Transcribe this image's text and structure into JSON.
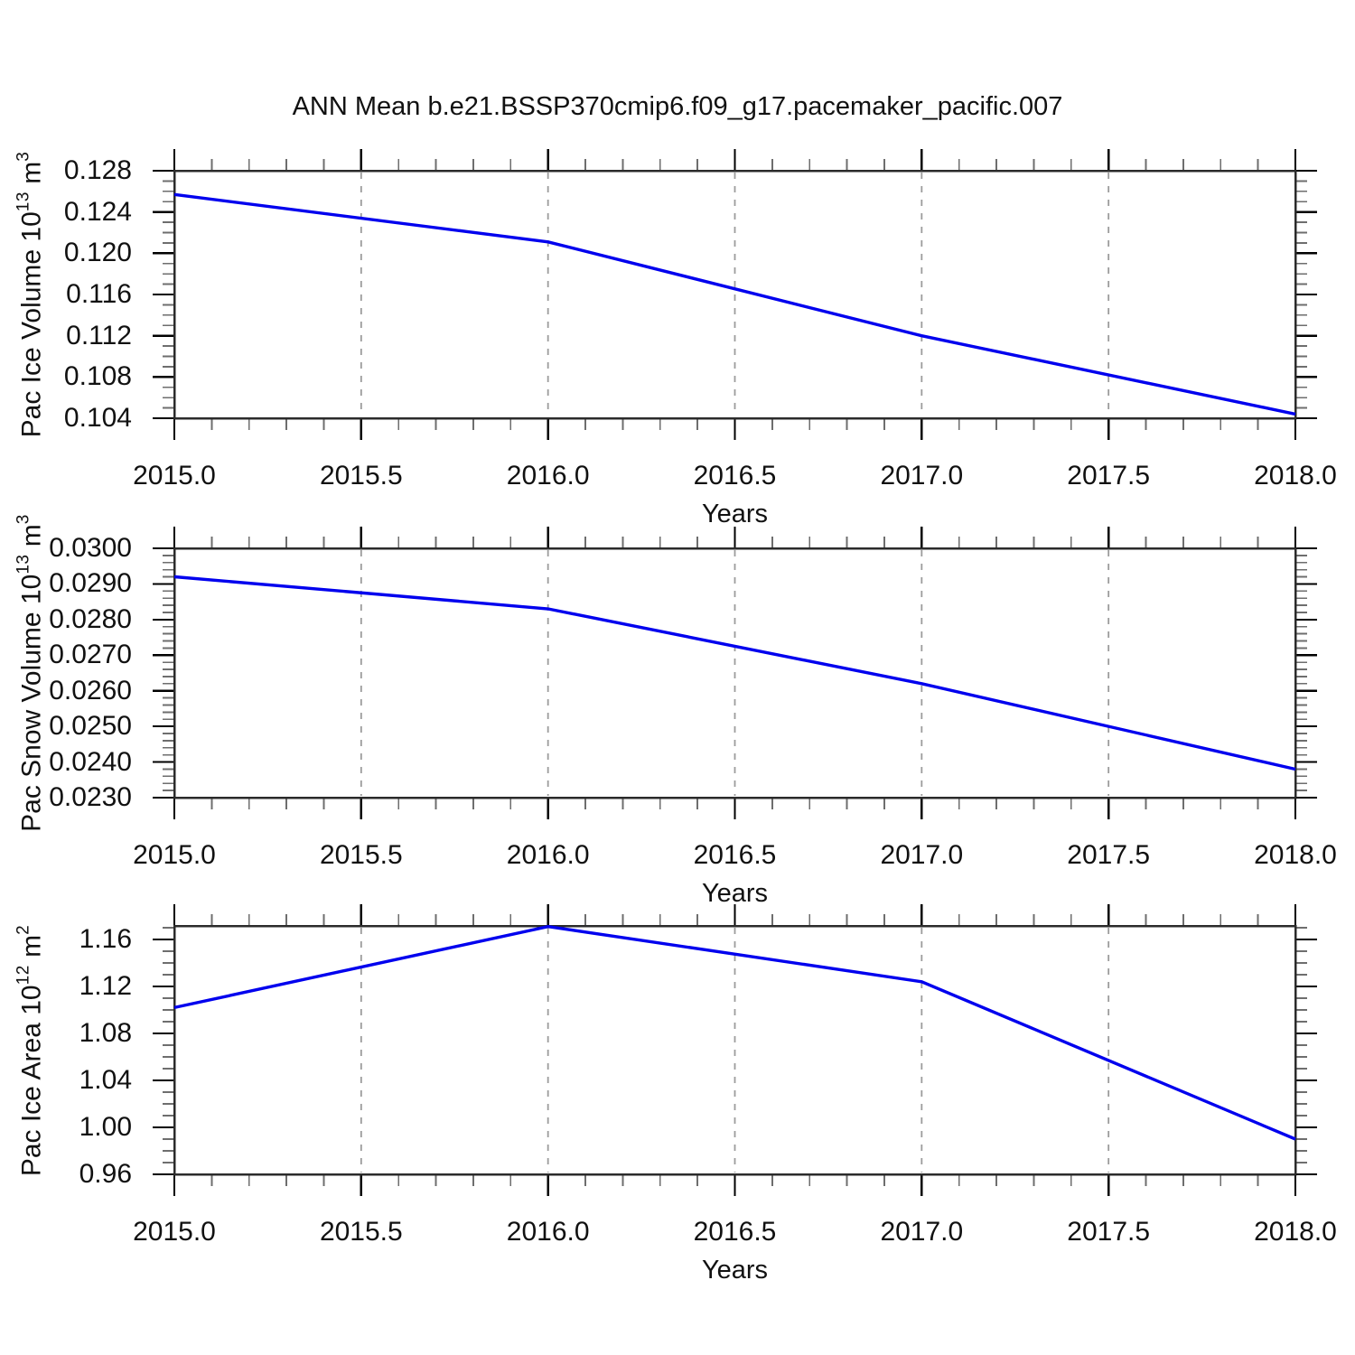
{
  "title": "ANN Mean b.e21.BSSP370cmip6.f09_g17.pacemaker_pacific.007",
  "line_color": "#0000ee",
  "grid_color": "#9c9c9c",
  "frame_color": "#2b2b2b",
  "major_tick_color": "#000000",
  "minor_tick_color": "#6e6e6e",
  "chart_data": [
    {
      "type": "line",
      "name": "pac-ice-volume",
      "ylabel_parts": [
        {
          "text": "Pac Ice Volume 10"
        },
        {
          "text": "13",
          "sup": true
        },
        {
          "text": " m"
        },
        {
          "text": "3",
          "sup": true
        }
      ],
      "xlabel": "Years",
      "x": [
        2015.0,
        2016.0,
        2017.0,
        2018.0
      ],
      "values": [
        0.1257,
        0.1211,
        0.112,
        0.1044
      ],
      "xlim": [
        2015.0,
        2018.0
      ],
      "ylim": [
        0.104,
        0.128
      ],
      "xticks": {
        "values": [
          2015.0,
          2015.5,
          2016.0,
          2016.5,
          2017.0,
          2017.5,
          2018.0
        ],
        "labels": [
          "2015.0",
          "2015.5",
          "2016.0",
          "2016.5",
          "2017.0",
          "2017.5",
          "2018.0"
        ],
        "minor_step": 0.1
      },
      "yticks": {
        "values": [
          0.104,
          0.108,
          0.112,
          0.116,
          0.12,
          0.124,
          0.128
        ],
        "labels": [
          "0.104",
          "0.108",
          "0.112",
          "0.116",
          "0.120",
          "0.124",
          "0.128"
        ],
        "minor_step": 0.001
      },
      "grid": {
        "vertical_dashed": true,
        "horizontal": false
      },
      "legend": "none"
    },
    {
      "type": "line",
      "name": "pac-snow-volume",
      "ylabel_parts": [
        {
          "text": "Pac Snow Volume 10"
        },
        {
          "text": "13",
          "sup": true
        },
        {
          "text": " m"
        },
        {
          "text": "3",
          "sup": true
        }
      ],
      "xlabel": "Years",
      "x": [
        2015.0,
        2016.0,
        2017.0,
        2018.0
      ],
      "values": [
        0.0292,
        0.0283,
        0.0262,
        0.0238
      ],
      "xlim": [
        2015.0,
        2018.0
      ],
      "ylim": [
        0.023,
        0.03
      ],
      "xticks": {
        "values": [
          2015.0,
          2015.5,
          2016.0,
          2016.5,
          2017.0,
          2017.5,
          2018.0
        ],
        "labels": [
          "2015.0",
          "2015.5",
          "2016.0",
          "2016.5",
          "2017.0",
          "2017.5",
          "2018.0"
        ],
        "minor_step": 0.1
      },
      "yticks": {
        "values": [
          0.023,
          0.024,
          0.025,
          0.026,
          0.027,
          0.028,
          0.029,
          0.03
        ],
        "labels": [
          "0.0230",
          "0.0240",
          "0.0250",
          "0.0260",
          "0.0270",
          "0.0280",
          "0.0290",
          "0.0300"
        ],
        "minor_step": 0.0002
      },
      "grid": {
        "vertical_dashed": true,
        "horizontal": false
      },
      "legend": "none"
    },
    {
      "type": "line",
      "name": "pac-ice-area",
      "ylabel_parts": [
        {
          "text": "Pac Ice Area 10"
        },
        {
          "text": "12",
          "sup": true
        },
        {
          "text": " m"
        },
        {
          "text": "2",
          "sup": true
        }
      ],
      "xlabel": "Years",
      "x": [
        2015.0,
        2016.0,
        2017.0,
        2018.0
      ],
      "values": [
        1.102,
        1.171,
        1.124,
        0.99
      ],
      "xlim": [
        2015.0,
        2018.0
      ],
      "ylim": [
        0.96,
        1.1715
      ],
      "xticks": {
        "values": [
          2015.0,
          2015.5,
          2016.0,
          2016.5,
          2017.0,
          2017.5,
          2018.0
        ],
        "labels": [
          "2015.0",
          "2015.5",
          "2016.0",
          "2016.5",
          "2017.0",
          "2017.5",
          "2018.0"
        ],
        "minor_step": 0.1
      },
      "yticks": {
        "values": [
          0.96,
          1.0,
          1.04,
          1.08,
          1.12,
          1.16
        ],
        "labels": [
          "0.96",
          "1.00",
          "1.04",
          "1.08",
          "1.12",
          "1.16"
        ],
        "minor_step": 0.01
      },
      "grid": {
        "vertical_dashed": true,
        "horizontal": false
      },
      "legend": "none"
    }
  ]
}
